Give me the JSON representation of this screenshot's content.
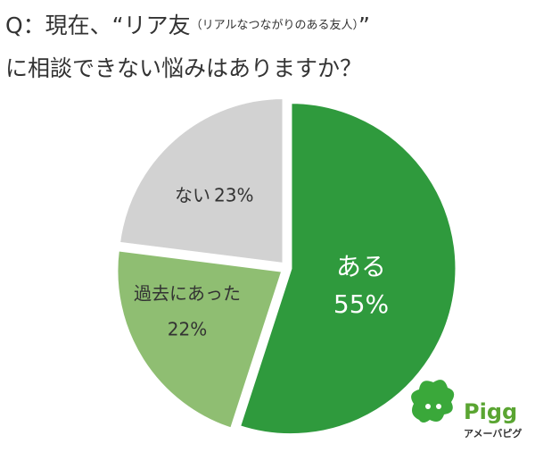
{
  "chart_data": {
    "type": "pie",
    "title": [
      "Q：現在、“リア友",
      "（リアルなつながりのある友人）",
      "”",
      "に相談できない悩みはありますか？"
    ],
    "categories": [
      "ある",
      "過去にあった",
      "ない"
    ],
    "values": [
      55,
      22,
      23
    ],
    "value_labels": [
      "55%",
      "22%",
      "23%"
    ],
    "colors": [
      "#2f9a3d",
      "#8fbe72",
      "#d2d2d2"
    ]
  },
  "logo": {
    "name": "Pigg",
    "subtitle": "アメーバピグ"
  }
}
